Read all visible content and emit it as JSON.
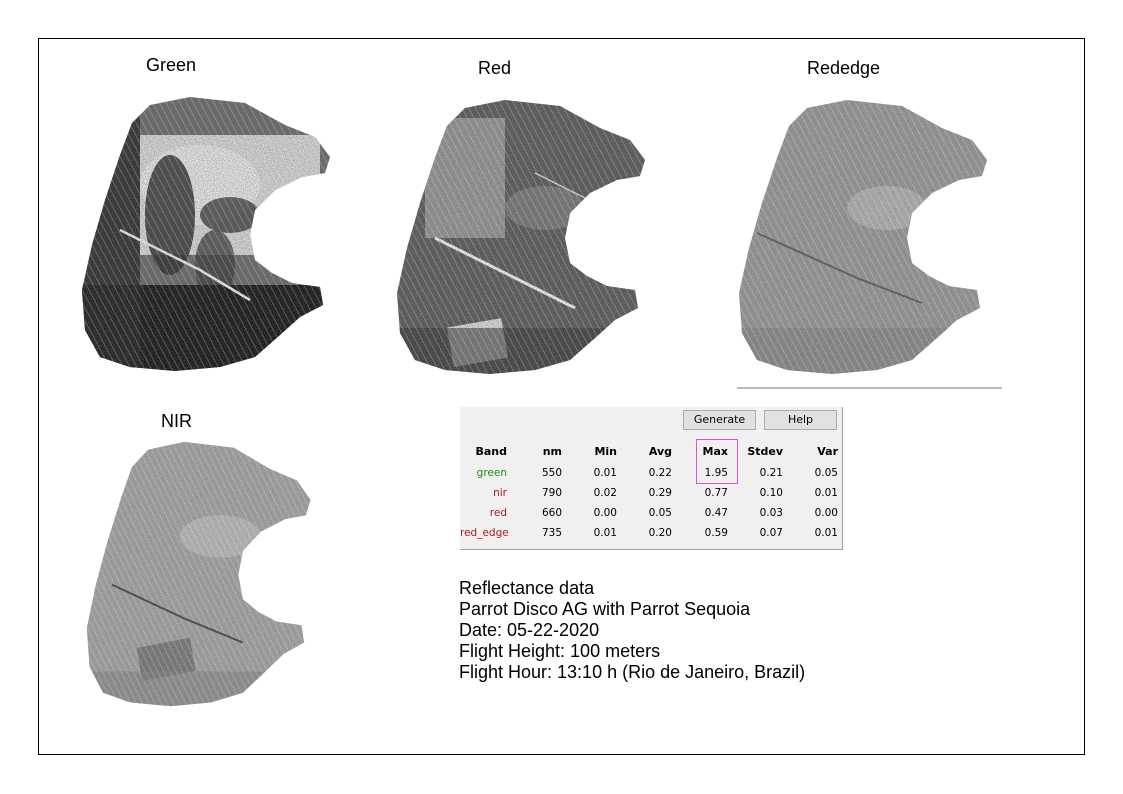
{
  "maps": {
    "green": {
      "title": "Green"
    },
    "red": {
      "title": "Red"
    },
    "rededge": {
      "title": "Rededge"
    },
    "nir": {
      "title": "NIR"
    }
  },
  "stats_panel": {
    "generate_label": "Generate",
    "help_label": "Help",
    "columns": [
      "Band",
      "nm",
      "Min",
      "Avg",
      "Max",
      "Stdev",
      "Var"
    ],
    "rows": [
      {
        "band": "green",
        "nm": "550",
        "min": "0.01",
        "avg": "0.22",
        "max": "1.95",
        "stdev": "0.21",
        "var": "0.05",
        "color": "#1a8a1a"
      },
      {
        "band": "nir",
        "nm": "790",
        "min": "0.02",
        "avg": "0.29",
        "max": "0.77",
        "stdev": "0.10",
        "var": "0.01",
        "color": "#b01818"
      },
      {
        "band": "red",
        "nm": "660",
        "min": "0.00",
        "avg": "0.05",
        "max": "0.47",
        "stdev": "0.03",
        "var": "0.00",
        "color": "#b01818"
      },
      {
        "band": "red_edge",
        "nm": "735",
        "min": "0.01",
        "avg": "0.20",
        "max": "0.59",
        "stdev": "0.07",
        "var": "0.01",
        "color": "#b01818"
      }
    ],
    "highlight_color": "#e04fd6"
  },
  "notes": {
    "line1": "Reflectance data",
    "line2": "Parrot Disco AG with Parrot Sequoia",
    "line3": "Date: 05-22-2020",
    "line4": "Flight Height: 100 meters",
    "line5": "Flight Hour: 13:10 h (Rio de Janeiro, Brazil)"
  }
}
